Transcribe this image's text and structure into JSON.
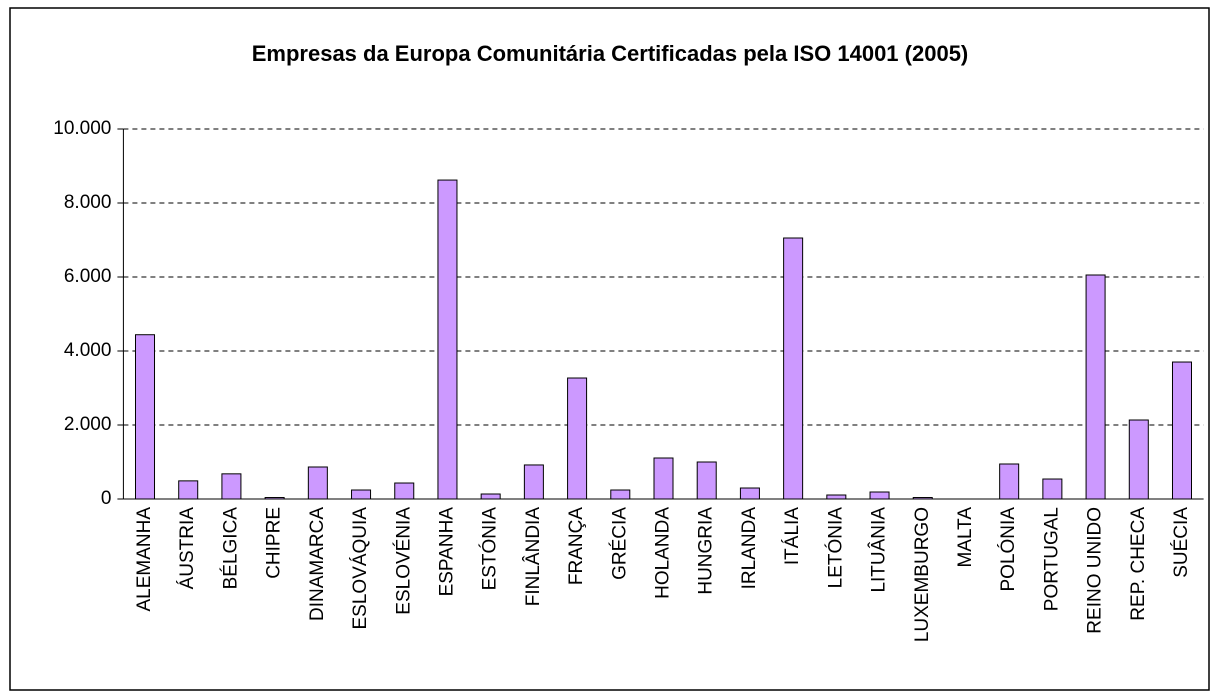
{
  "chart_data": {
    "type": "bar",
    "title": "Empresas da Europa Comunitária Certificadas pela ISO 14001 (2005)",
    "categories": [
      "ALEMANHA",
      "ÁUSTRIA",
      "BÉLGICA",
      "CHIPRE",
      "DINAMARCA",
      "ESLOVÁQUIA",
      "ESLOVÉNIA",
      "ESPANHA",
      "ESTÓNIA",
      "FINLÂNDIA",
      "FRANÇA",
      "GRÉCIA",
      "HOLANDA",
      "HUNGRIA",
      "IRLANDA",
      "ITÁLIA",
      "LETÓNIA",
      "LITUÂNIA",
      "LUXEMBURGO",
      "MALTA",
      "POLÓNIA",
      "PORTUGAL",
      "REINO UNIDO",
      "REP. CHECA",
      "SUÉCIA"
    ],
    "values": [
      4440,
      490,
      680,
      40,
      865,
      243,
      432,
      8620,
      135,
      920,
      3270,
      243,
      1108,
      1000,
      297,
      7054,
      108,
      189,
      40,
      0,
      946,
      540,
      6054,
      2135,
      3702
    ],
    "color": "#cc99ff",
    "ylim": [
      0,
      10000
    ],
    "yticks": [
      0,
      {
        "value": 2000,
        "label": "2.000"
      },
      {
        "value": 4000,
        "label": "4.000"
      },
      {
        "value": 6000,
        "label": "6.000"
      },
      {
        "value": 8000,
        "label": "8.000"
      },
      {
        "value": 10000,
        "label": "10.000"
      }
    ],
    "grid": true
  }
}
